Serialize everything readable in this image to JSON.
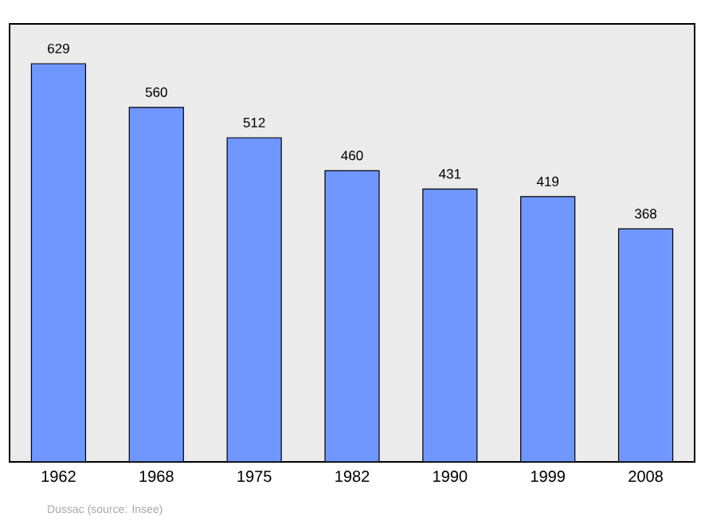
{
  "chart_data": {
    "type": "bar",
    "categories": [
      "1962",
      "1968",
      "1975",
      "1982",
      "1990",
      "1999",
      "2008"
    ],
    "values": [
      629,
      560,
      512,
      460,
      431,
      419,
      368
    ],
    "color": "#7097ff",
    "data_labels": true,
    "annotations": [
      "Dussac    (source: Insee)"
    ]
  }
}
